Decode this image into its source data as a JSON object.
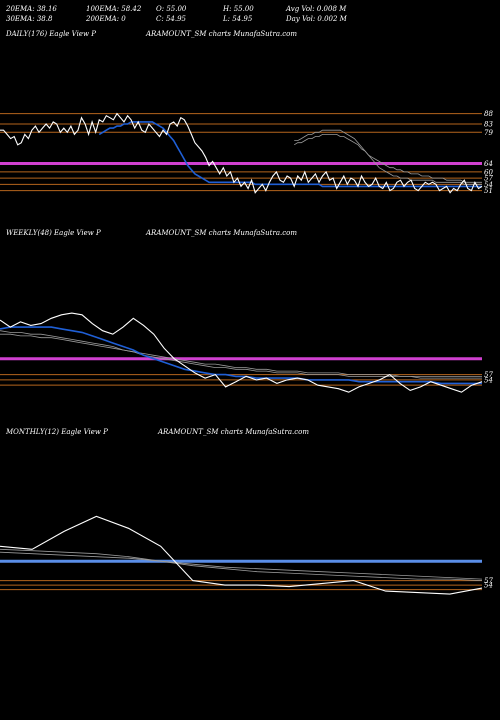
{
  "header": {
    "row1": [
      "20EMA: 38.16",
      "100EMA: 58.42",
      "O: 55.00",
      "H: 55.00",
      "Avg Vol: 0.008  M"
    ],
    "row2": [
      "30EMA: 38.8",
      "200EMA: 0",
      "C: 54.95",
      "L: 54.95",
      "Day Vol: 0.002  M"
    ]
  },
  "panels": {
    "daily": {
      "left": "DAILY(176) Eagle   View   P",
      "right": "ARAMOUNT_SM charts MunafaSutra.com"
    },
    "weekly": {
      "left": "WEEKLY(48) Eagle   View   P",
      "right": "ARAMOUNT_SM charts MunafaSutra.com"
    },
    "monthly": {
      "left": "MONTHLY(12) Eagle   View   P",
      "right": "ARAMOUNT_SM charts MunafaSutra.com"
    }
  },
  "colors": {
    "background": "#000000",
    "price": "#ffffff",
    "ema_blue": "#1f5fd6",
    "ema_gray": "#9a9a9a",
    "level_line": "#b5651d",
    "magenta_band": "#d040d0",
    "monthly_band": "#5a8ee8"
  },
  "chart_data": [
    {
      "type": "line",
      "name": "daily",
      "tick_labels": [
        "88",
        "83",
        "79",
        "64",
        "60",
        "57",
        "54",
        "51"
      ],
      "ylim": [
        46,
        95
      ],
      "price": [
        80,
        80,
        78,
        76,
        77,
        73,
        74,
        78,
        76,
        80,
        82,
        79,
        81,
        83,
        81,
        84,
        83,
        79,
        81,
        79,
        82,
        78,
        80,
        86,
        83,
        78,
        84,
        79,
        85,
        84,
        87,
        86,
        85,
        88,
        86,
        84,
        87,
        85,
        81,
        84,
        80,
        79,
        83,
        81,
        79,
        77,
        80,
        78,
        83,
        84,
        82,
        86,
        85,
        82,
        78,
        74,
        72,
        70,
        67,
        63,
        65,
        62,
        59,
        62,
        58,
        60,
        55,
        57,
        53,
        55,
        52,
        56,
        50,
        52,
        54,
        51,
        55,
        58,
        60,
        56,
        55,
        58,
        57,
        53,
        58,
        56,
        60,
        55,
        57,
        59,
        55,
        58,
        60,
        56,
        57,
        52,
        55,
        58,
        54,
        57,
        56,
        53,
        58,
        55,
        53,
        54,
        57,
        53,
        52,
        55,
        51,
        52,
        55,
        56,
        53,
        55,
        56,
        52,
        51,
        53,
        55,
        54,
        55,
        54,
        51,
        52,
        53,
        50,
        52,
        51,
        54,
        56,
        52,
        51,
        55,
        52,
        53
      ],
      "ema_blue": [
        78,
        79,
        80,
        81,
        81,
        82,
        82,
        83,
        83,
        84,
        84,
        84,
        84,
        84,
        84,
        84,
        83,
        82,
        81,
        79,
        77,
        75,
        72,
        69,
        66,
        63,
        61,
        59,
        58,
        57,
        56,
        55,
        55,
        55,
        55,
        55,
        55,
        55,
        55,
        55,
        55,
        55,
        55,
        55,
        54,
        54,
        54,
        54,
        54,
        54,
        54,
        54,
        54,
        54,
        54,
        54,
        54,
        54,
        54,
        54,
        54,
        54,
        54,
        53,
        53,
        53,
        53,
        53,
        53,
        53,
        53,
        53,
        53,
        53,
        53,
        53,
        53,
        53,
        53,
        53,
        53,
        53,
        53,
        53,
        53,
        53,
        53,
        53,
        53,
        53,
        53,
        53,
        53,
        53,
        53,
        53,
        53,
        53,
        53,
        53,
        53,
        53,
        53,
        53,
        53,
        53,
        53,
        53,
        53
      ],
      "ema_gray_1": [
        75,
        75,
        76,
        77,
        78,
        78,
        79,
        79,
        80,
        80,
        80,
        80,
        80,
        80,
        79,
        78,
        77,
        76,
        74,
        72,
        70,
        68,
        66,
        64,
        62,
        61,
        60,
        59,
        58,
        58,
        57,
        57,
        57,
        56,
        56,
        56,
        56,
        56,
        56,
        56,
        55,
        55,
        55,
        55,
        55,
        55,
        55,
        55,
        54,
        54,
        54,
        54,
        54,
        54
      ],
      "ema_gray_2": [
        73,
        74,
        74,
        75,
        76,
        76,
        77,
        77,
        78,
        78,
        78,
        78,
        78,
        77,
        77,
        76,
        75,
        74,
        73,
        71,
        70,
        68,
        67,
        66,
        65,
        64,
        63,
        62,
        62,
        61,
        61,
        60,
        60,
        59,
        59,
        59,
        58,
        58,
        58,
        57,
        57,
        57,
        57,
        56,
        56,
        56,
        56,
        56,
        55,
        55,
        55,
        55,
        55,
        55
      ],
      "level_lines": [
        88,
        83,
        79,
        60,
        57,
        54,
        51
      ],
      "magenta_level": 64
    },
    {
      "type": "line",
      "name": "weekly",
      "tick_labels": [
        "57",
        "54"
      ],
      "ylim": [
        42,
        100
      ],
      "price": [
        88,
        84,
        87,
        85,
        86,
        89,
        91,
        92,
        91,
        86,
        82,
        80,
        84,
        89,
        85,
        80,
        72,
        66,
        62,
        58,
        55,
        57,
        50,
        53,
        56,
        54,
        55,
        52,
        54,
        55,
        54,
        51,
        50,
        49,
        47,
        50,
        52,
        54,
        57,
        52,
        48,
        50,
        53,
        51,
        49,
        47,
        51,
        53
      ],
      "ema_blue": [
        83,
        84,
        84,
        84,
        84,
        84,
        83,
        82,
        81,
        79,
        77,
        75,
        73,
        71,
        68,
        66,
        64,
        62,
        60,
        59,
        58,
        57,
        57,
        56,
        56,
        55,
        55,
        55,
        55,
        55,
        54,
        54,
        54,
        54,
        54,
        53,
        53,
        53,
        53,
        53,
        53,
        53,
        53,
        52,
        52,
        52,
        52,
        52
      ],
      "ema_gray_1": [
        82,
        81,
        81,
        80,
        80,
        79,
        78,
        77,
        76,
        75,
        74,
        73,
        71,
        70,
        68,
        67,
        66,
        65,
        64,
        63,
        62,
        61,
        61,
        60,
        60,
        59,
        59,
        58,
        58,
        58,
        57,
        57,
        57,
        57,
        56,
        56,
        56,
        56,
        56,
        56,
        56,
        55,
        55,
        55,
        55,
        55,
        55,
        55
      ],
      "ema_gray_2": [
        80,
        80,
        79,
        79,
        78,
        78,
        77,
        76,
        75,
        74,
        73,
        72,
        71,
        70,
        69,
        68,
        67,
        66,
        65,
        64,
        63,
        63,
        62,
        61,
        61,
        60,
        60,
        59,
        59,
        59,
        58,
        58,
        58,
        58,
        57,
        57,
        57,
        57,
        57,
        56,
        56,
        56,
        56,
        56,
        56,
        56,
        56,
        56
      ],
      "level_lines": [
        57,
        54,
        51
      ],
      "magenta_level": 66
    },
    {
      "type": "line",
      "name": "monthly",
      "tick_labels": [
        "57",
        "54"
      ],
      "ylim": [
        40,
        115
      ],
      "price": [
        80,
        78,
        90,
        100,
        92,
        80,
        57,
        54,
        54,
        53,
        55,
        57,
        50,
        49,
        48,
        52
      ],
      "ema_gray_1": [
        78,
        77,
        76,
        75,
        73,
        70,
        67,
        65,
        63,
        62,
        61,
        60,
        59,
        58,
        58,
        57
      ],
      "ema_gray_2": [
        76,
        75,
        74,
        73,
        72,
        70,
        68,
        66,
        65,
        64,
        63,
        62,
        61,
        60,
        59,
        58
      ],
      "level_lines": [
        57,
        54,
        51
      ],
      "blue_level": 70
    }
  ]
}
